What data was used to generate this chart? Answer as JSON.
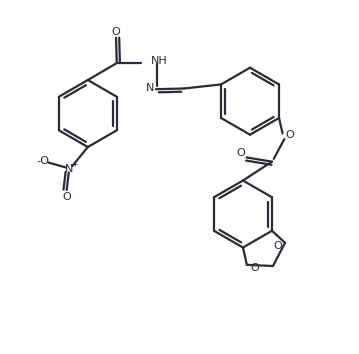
{
  "bg_color": "#ffffff",
  "line_color": "#2a2a3a",
  "lw": 1.6,
  "figsize": [
    3.59,
    3.54
  ],
  "dpi": 100,
  "xlim": [
    0,
    10
  ],
  "ylim": [
    0,
    10
  ]
}
